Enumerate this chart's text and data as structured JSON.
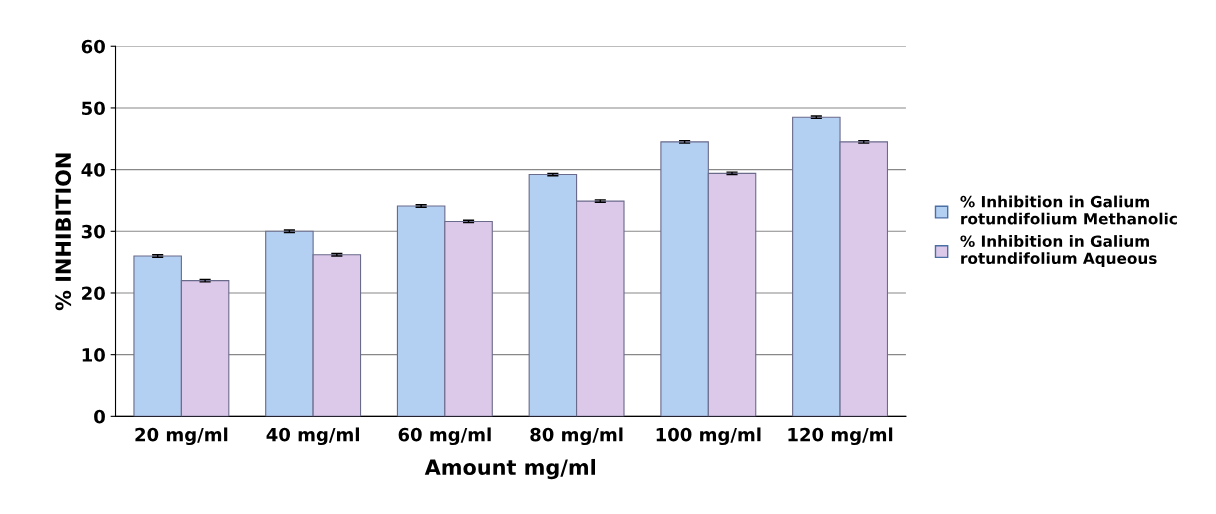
{
  "chart_data": {
    "type": "bar",
    "xlabel": "Amount mg/ml",
    "ylabel": "% INHIBITION",
    "categories": [
      "20 mg/ml",
      "40 mg/ml",
      "60 mg/ml",
      "80 mg/ml",
      "100 mg/ml",
      "120 mg/ml"
    ],
    "series": [
      {
        "name": "% Inhibition in Galium rotundifolium Methanolic",
        "color": "#b3cff2",
        "values": [
          26,
          30,
          34.1,
          39.2,
          44.5,
          48.5
        ],
        "errors": [
          0.2,
          0.2,
          0.2,
          0.2,
          0.2,
          0.2
        ]
      },
      {
        "name": "% Inhibition in Galium rotundifolium Aqueous",
        "color": "#dcc9ea",
        "values": [
          22,
          26.2,
          31.6,
          34.9,
          39.4,
          44.5
        ],
        "errors": [
          0.2,
          0.2,
          0.2,
          0.2,
          0.2,
          0.2
        ]
      }
    ],
    "ylim": [
      0,
      60
    ],
    "yticks": [
      0,
      10,
      20,
      30,
      40,
      50,
      60
    ],
    "grid": "y",
    "legend": "right"
  }
}
